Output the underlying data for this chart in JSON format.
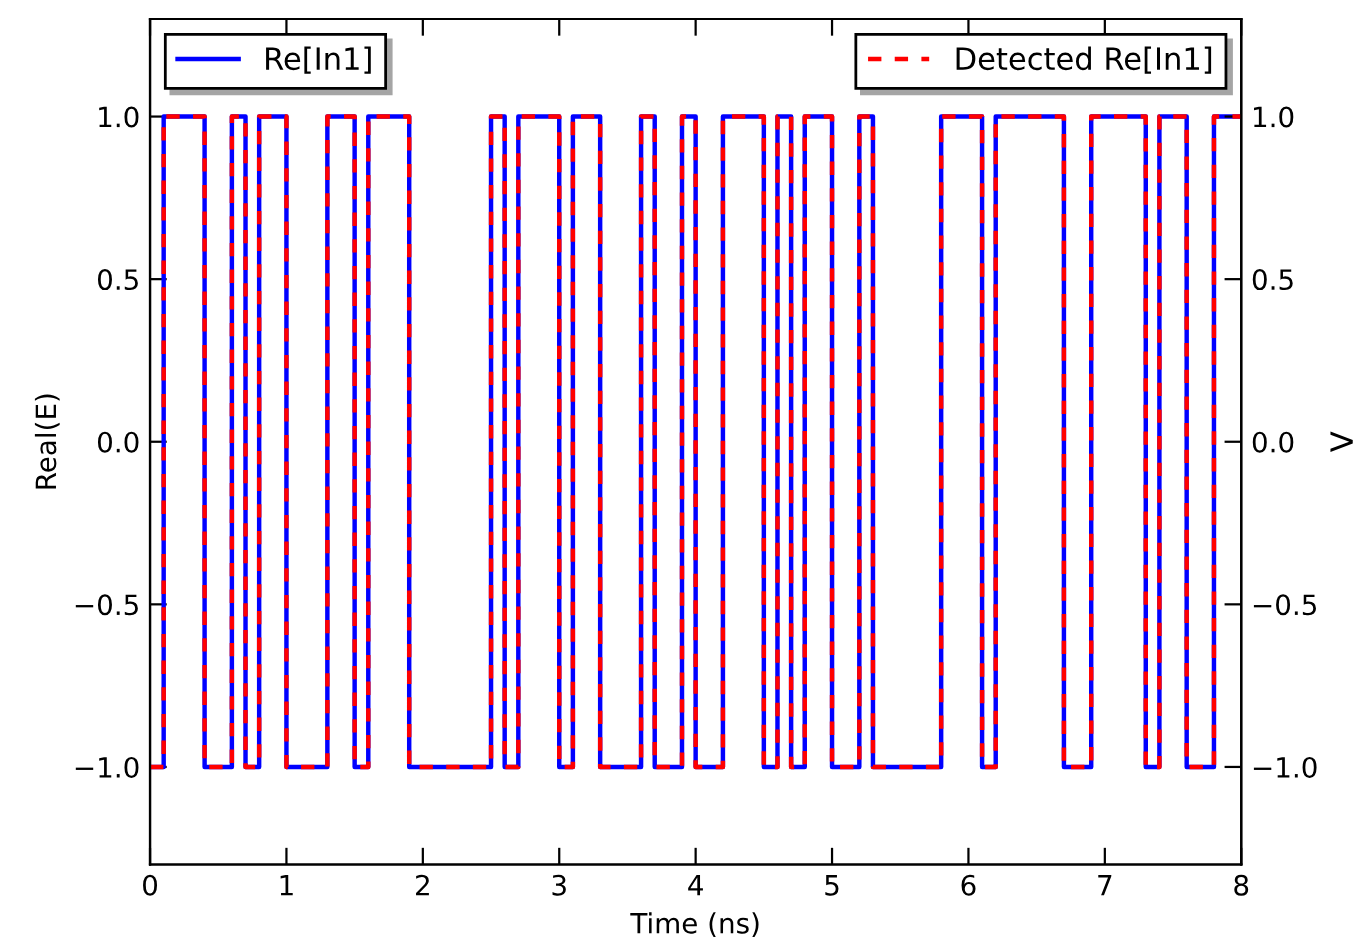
{
  "chart_data": {
    "type": "step",
    "xlabel": "Time (ns)",
    "ylabel": "Real(E)",
    "y2label": "V",
    "xlim": [
      0,
      8
    ],
    "xticks": [
      0,
      1,
      2,
      3,
      4,
      5,
      6,
      7,
      8
    ],
    "ylim": [
      -1.3,
      1.3
    ],
    "yticks": [
      {
        "value": -1.0,
        "label": "−1.0"
      },
      {
        "value": -0.5,
        "label": "−0.5"
      },
      {
        "value": 0.0,
        "label": "0.0"
      },
      {
        "value": 0.5,
        "label": "0.5"
      },
      {
        "value": 1.0,
        "label": "1.0"
      }
    ],
    "y2lim": [
      -1.3,
      1.3
    ],
    "y2ticks": [
      {
        "value": -1.0,
        "label": "−1.0"
      },
      {
        "value": -0.5,
        "label": "−0.5"
      },
      {
        "value": 0.0,
        "label": "0.0"
      },
      {
        "value": 0.5,
        "label": "0.5"
      },
      {
        "value": 1.0,
        "label": "1.0"
      }
    ],
    "grid": false,
    "legend": "top",
    "x": [
      0,
      0.1,
      0.4,
      0.6,
      0.7,
      0.8,
      1.0,
      1.3,
      1.5,
      1.6,
      1.9,
      2.5,
      2.6,
      2.7,
      3.0,
      3.1,
      3.3,
      3.6,
      3.7,
      3.9,
      4.0,
      4.2,
      4.5,
      4.6,
      4.7,
      4.8,
      5.0,
      5.2,
      5.3,
      5.8,
      6.1,
      6.2,
      6.7,
      6.9,
      7.3,
      7.4,
      7.6,
      7.8,
      8
    ],
    "series": [
      {
        "name": "Re[In1]",
        "color": "#0000ff",
        "line_style": "solid",
        "values": [
          -1,
          1,
          -1,
          1,
          -1,
          1,
          -1,
          1,
          -1,
          1,
          -1,
          1,
          -1,
          1,
          -1,
          1,
          -1,
          1,
          -1,
          1,
          -1,
          1,
          -1,
          1,
          -1,
          1,
          -1,
          1,
          -1,
          1,
          -1,
          1,
          -1,
          1,
          -1,
          1,
          -1,
          1,
          1
        ]
      },
      {
        "name": "Detected Re[In1]",
        "color": "#ff0000",
        "line_style": "dashed",
        "axis": "y2",
        "values": [
          -1,
          1,
          -1,
          1,
          -1,
          1,
          -1,
          1,
          -1,
          1,
          -1,
          1,
          -1,
          1,
          -1,
          1,
          -1,
          1,
          -1,
          1,
          -1,
          1,
          -1,
          1,
          -1,
          1,
          -1,
          1,
          -1,
          1,
          -1,
          1,
          -1,
          1,
          -1,
          1,
          -1,
          1,
          1
        ]
      }
    ]
  }
}
